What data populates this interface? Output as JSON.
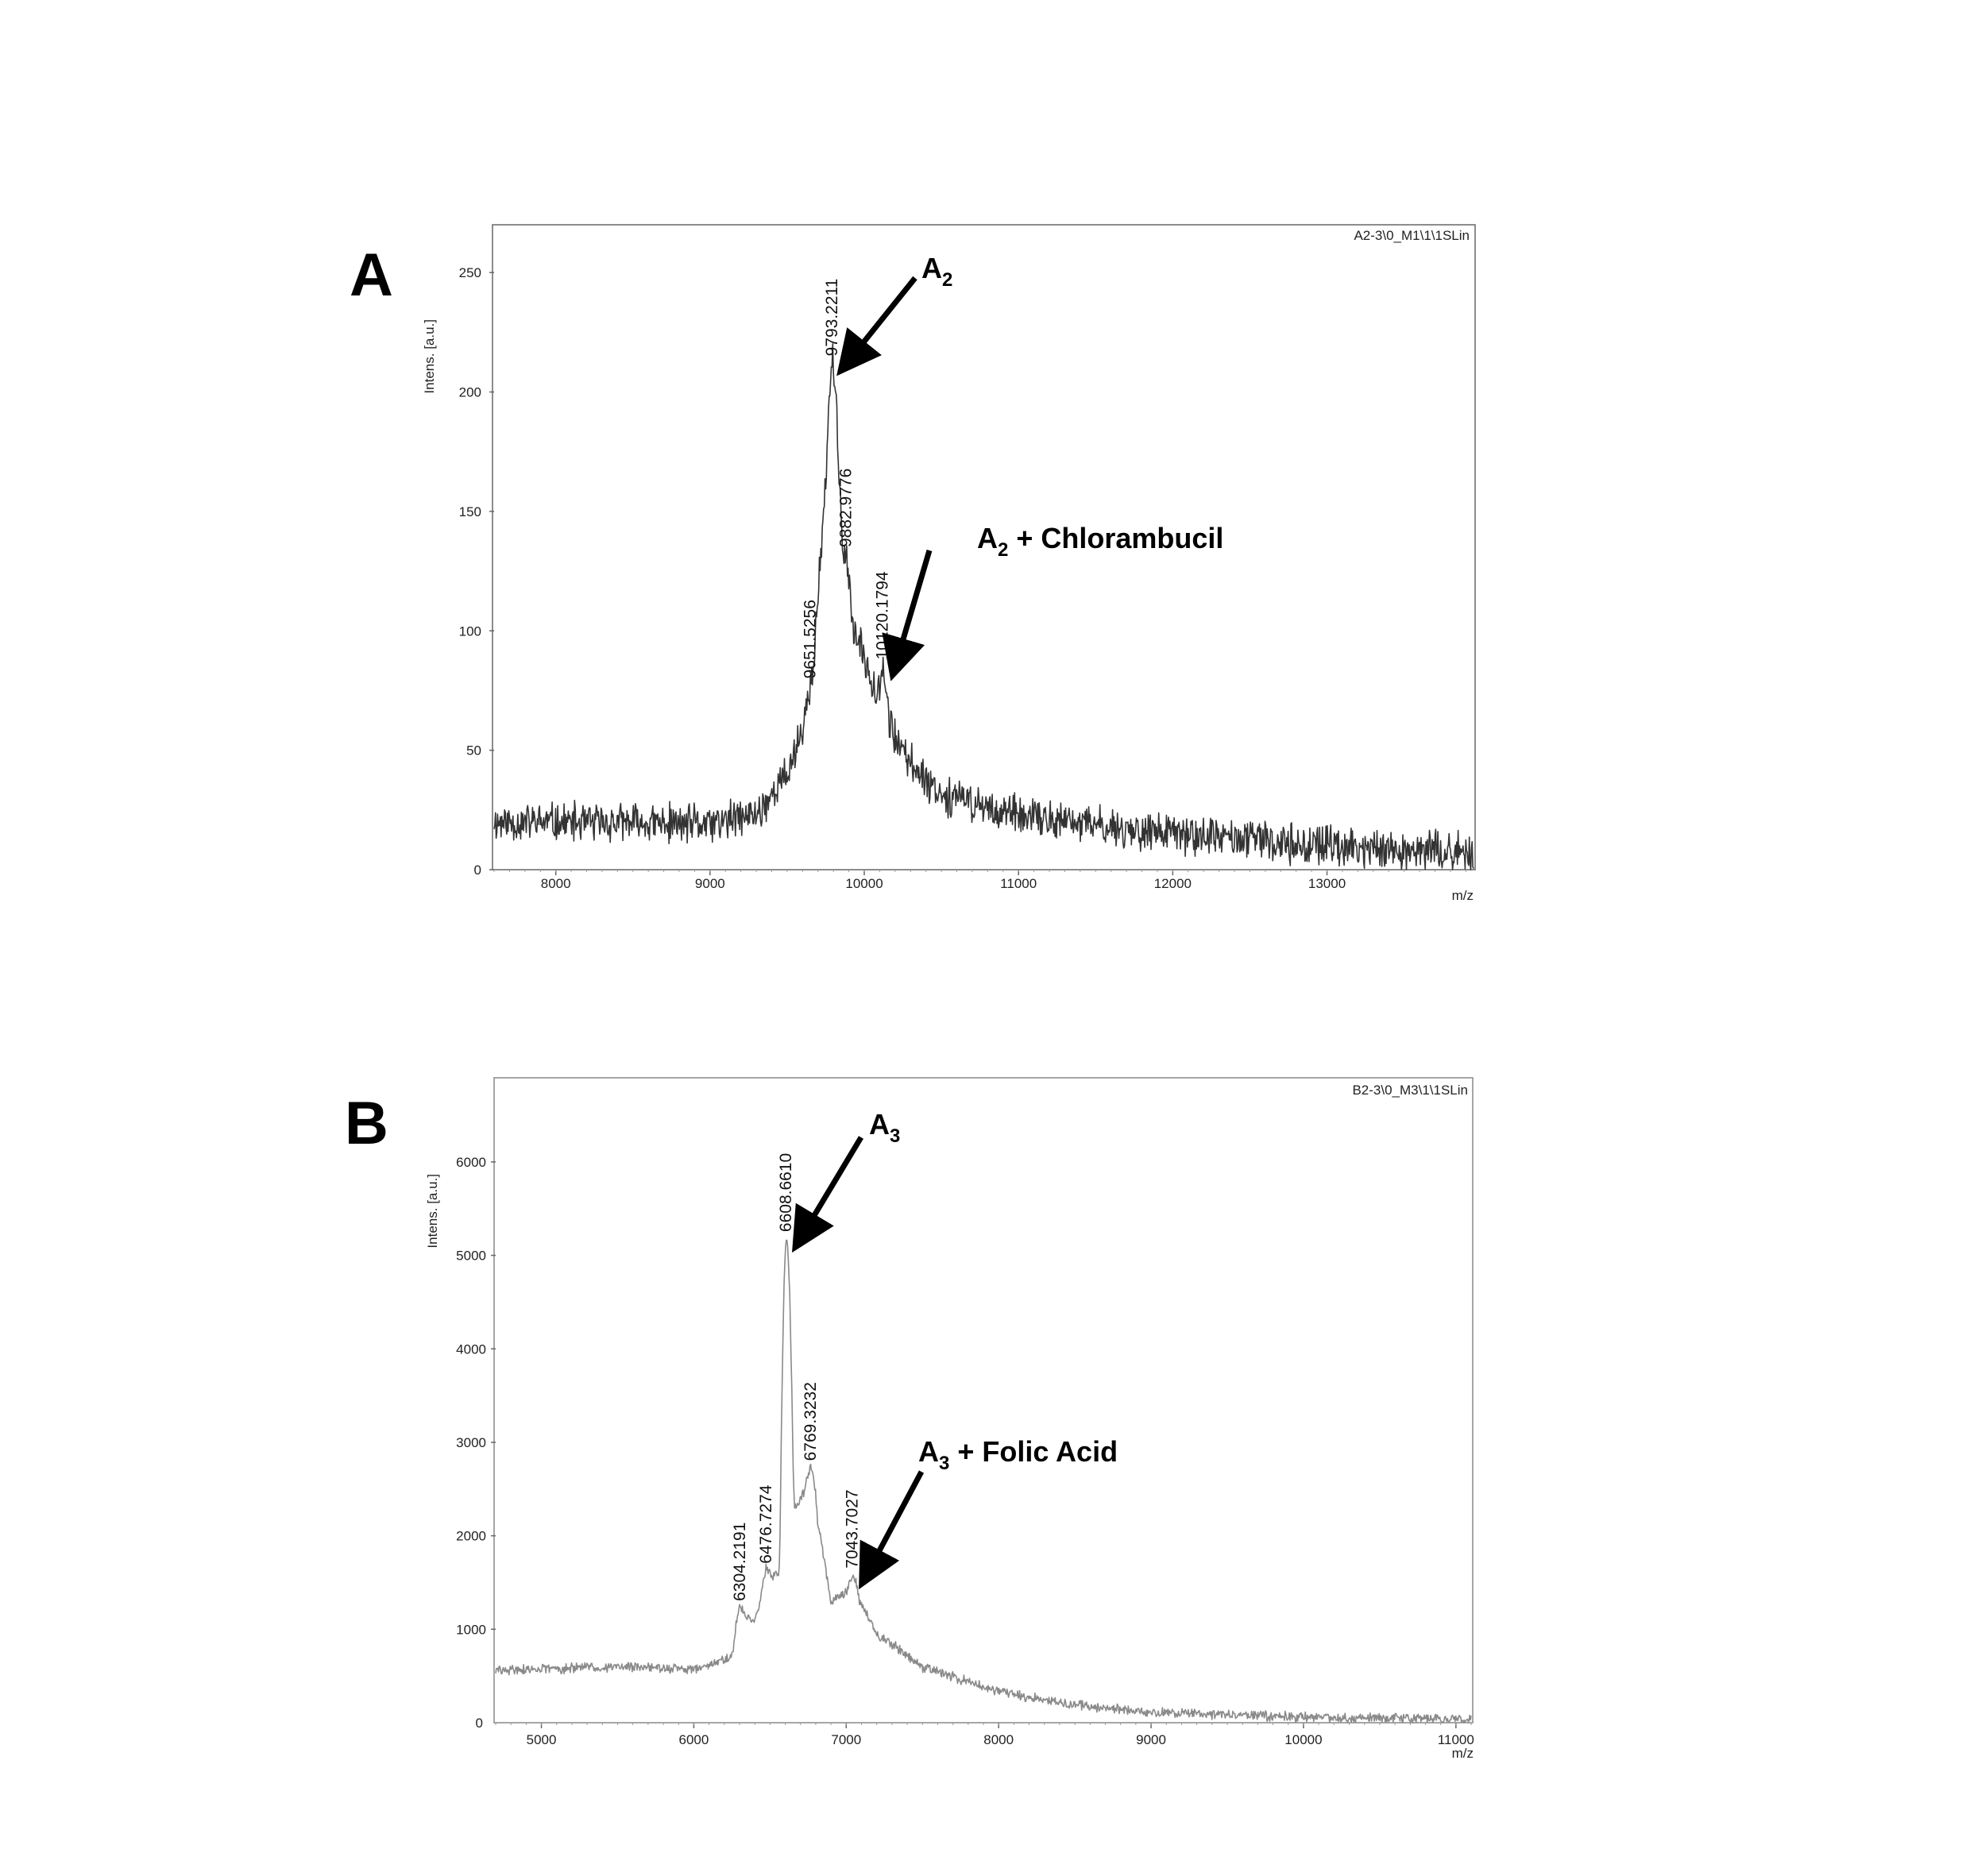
{
  "chart_data": [
    {
      "type": "line",
      "panel_label": "A",
      "file_label": "A2-3\\0_M1\\1\\1SLin",
      "xlabel": "m/z",
      "ylabel": "Intens. [a.u.]",
      "xlim": [
        7600,
        13950
      ],
      "ylim": [
        0,
        270
      ],
      "x_ticks": [
        8000,
        9000,
        10000,
        11000,
        12000,
        13000
      ],
      "y_ticks": [
        0,
        50,
        100,
        150,
        200,
        250
      ],
      "grid": false,
      "line_color": "#333333",
      "peaks": [
        {
          "x": 9651.5256,
          "y": 78,
          "label": "9651.5256"
        },
        {
          "x": 9793.2211,
          "y": 213,
          "label": "9793.2211"
        },
        {
          "x": 9882.9776,
          "y": 133,
          "label": "9882.9776"
        },
        {
          "x": 10120.1794,
          "y": 86,
          "label": "10120.1794"
        }
      ],
      "annotations": [
        {
          "text": "A",
          "subscript": "2",
          "suffix": "",
          "target_x": 9793.2211
        },
        {
          "text": "A",
          "subscript": "2",
          "suffix": " + Chlorambucil",
          "target_x": 10120.1794
        }
      ],
      "profile": {
        "baseline": [
          [
            7600,
            20
          ],
          [
            9000,
            19
          ],
          [
            9300,
            23
          ],
          [
            9500,
            40
          ],
          [
            9650,
            68
          ],
          [
            9793,
            200
          ],
          [
            9900,
            105
          ],
          [
            10050,
            80
          ],
          [
            10250,
            48
          ],
          [
            10500,
            32
          ],
          [
            11000,
            22
          ],
          [
            12000,
            15
          ],
          [
            13000,
            10
          ],
          [
            13950,
            7
          ]
        ],
        "noise_amplitude": 7
      }
    },
    {
      "type": "line",
      "panel_label": "B",
      "file_label": "B2-3\\0_M3\\1\\1SLin",
      "xlabel": "m/z",
      "ylabel": "Intens. [a.u.]",
      "xlim": [
        4700,
        11100
      ],
      "ylim": [
        0,
        6900
      ],
      "x_ticks": [
        5000,
        6000,
        7000,
        8000,
        9000,
        10000,
        11000
      ],
      "y_ticks": [
        1000,
        2000,
        3000,
        4000,
        5000,
        6000
      ],
      "y_bottom_tick_label": "0",
      "grid": false,
      "line_color": "#8a8a8a",
      "peaks": [
        {
          "x": 6304.2191,
          "y": 1250,
          "label": "6304.2191"
        },
        {
          "x": 6476.7274,
          "y": 1650,
          "label": "6476.7274"
        },
        {
          "x": 6608.661,
          "y": 5200,
          "label": "6608.6610"
        },
        {
          "x": 6769.3232,
          "y": 2750,
          "label": "6769.3232"
        },
        {
          "x": 7043.7027,
          "y": 1600,
          "label": "7043.7027"
        }
      ],
      "annotations": [
        {
          "text": "A",
          "subscript": "3",
          "suffix": "",
          "target_x": 6608.661
        },
        {
          "text": "A",
          "subscript": "3",
          "suffix": " + Folic Acid",
          "target_x": 7043.7027
        }
      ],
      "profile": {
        "baseline": [
          [
            4700,
            560
          ],
          [
            5500,
            600
          ],
          [
            6000,
            570
          ],
          [
            6250,
            700
          ],
          [
            6304,
            1150
          ],
          [
            6400,
            1100
          ],
          [
            6476,
            1500
          ],
          [
            6560,
            1600
          ],
          [
            6608,
            4950
          ],
          [
            6660,
            2300
          ],
          [
            6769,
            2600
          ],
          [
            6900,
            1300
          ],
          [
            7043,
            1450
          ],
          [
            7200,
            950
          ],
          [
            7500,
            600
          ],
          [
            8000,
            330
          ],
          [
            8500,
            190
          ],
          [
            9000,
            110
          ],
          [
            10000,
            60
          ],
          [
            11100,
            40
          ]
        ],
        "noise_amplitude": 45
      }
    }
  ]
}
